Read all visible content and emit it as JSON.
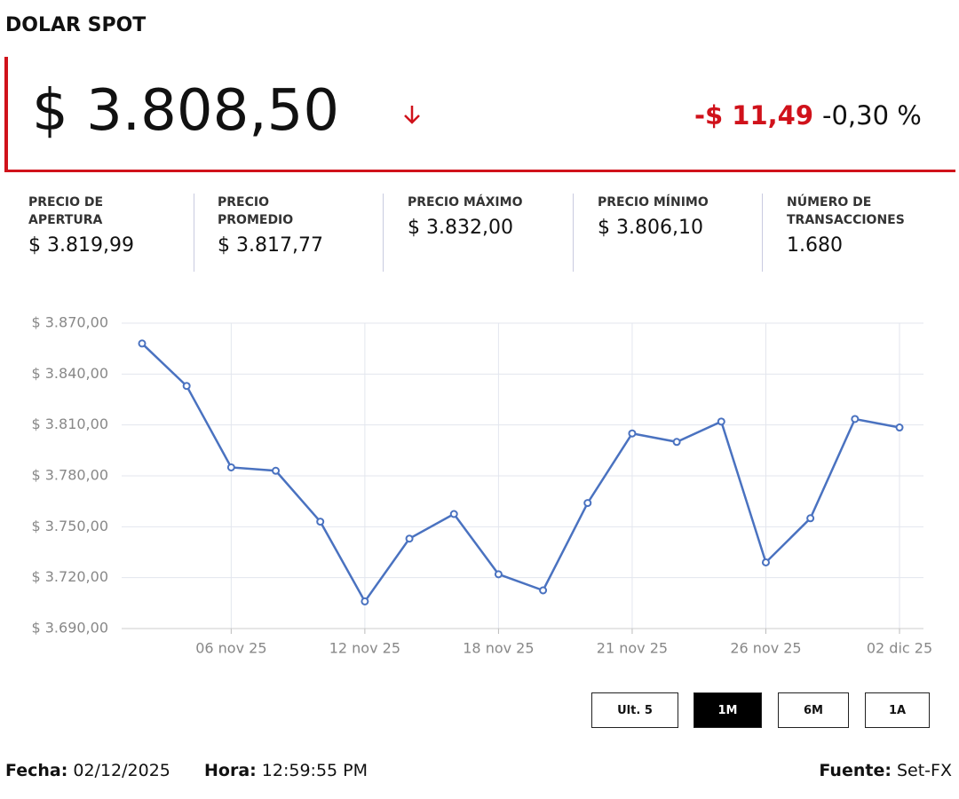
{
  "header": {
    "title": "DOLAR SPOT",
    "price": "$ 3.808,50",
    "change": "-$ 11,49",
    "change_pct": "-0,30 %"
  },
  "stats": [
    {
      "label": "PRECIO DE\nAPERTURA",
      "value": "$ 3.819,99"
    },
    {
      "label": "PRECIO\nPROMEDIO",
      "value": "$ 3.817,77"
    },
    {
      "label": "PRECIO MÁXIMO",
      "value": "$ 3.832,00"
    },
    {
      "label": "PRECIO MÍNIMO",
      "value": "$ 3.806,10"
    },
    {
      "label": "NÚMERO DE\nTRANSACCIONES",
      "value": "1.680"
    }
  ],
  "chart_data": {
    "type": "line",
    "categories": [
      null,
      null,
      "06 nov 25",
      null,
      null,
      "12 nov 25",
      null,
      null,
      "18 nov 25",
      null,
      null,
      "21 nov 25",
      null,
      null,
      "26 nov 25",
      null,
      null,
      "02 dic 25"
    ],
    "series": [
      {
        "name": "Dolar spot",
        "color": "#4a72c0",
        "values": [
          3858,
          3833,
          3785,
          3783,
          3753,
          3706,
          3743,
          3757.5,
          3722,
          3712.5,
          3764,
          3805,
          3800,
          3812,
          3729,
          3755,
          3813.5,
          3808.5
        ]
      }
    ],
    "ylim": [
      3690,
      3870
    ],
    "yticks": [
      {
        "value": 3690,
        "label": "$ 3.690,00"
      },
      {
        "value": 3720,
        "label": "$ 3.720,00"
      },
      {
        "value": 3750,
        "label": "$ 3.750,00"
      },
      {
        "value": 3780,
        "label": "$ 3.780,00"
      },
      {
        "value": 3810,
        "label": "$ 3.810,00"
      },
      {
        "value": 3840,
        "label": "$ 3.840,00"
      },
      {
        "value": 3870,
        "label": "$ 3.870,00"
      }
    ],
    "grid": true
  },
  "buttons": [
    "Ult. 5",
    "1M",
    "6M",
    "1A"
  ],
  "footer": {
    "date_label": "Fecha:",
    "date": "02/12/2025",
    "time_label": "Hora:",
    "time": "12:59:55 PM",
    "source_label": "Fuente:",
    "source": "Set-FX"
  }
}
